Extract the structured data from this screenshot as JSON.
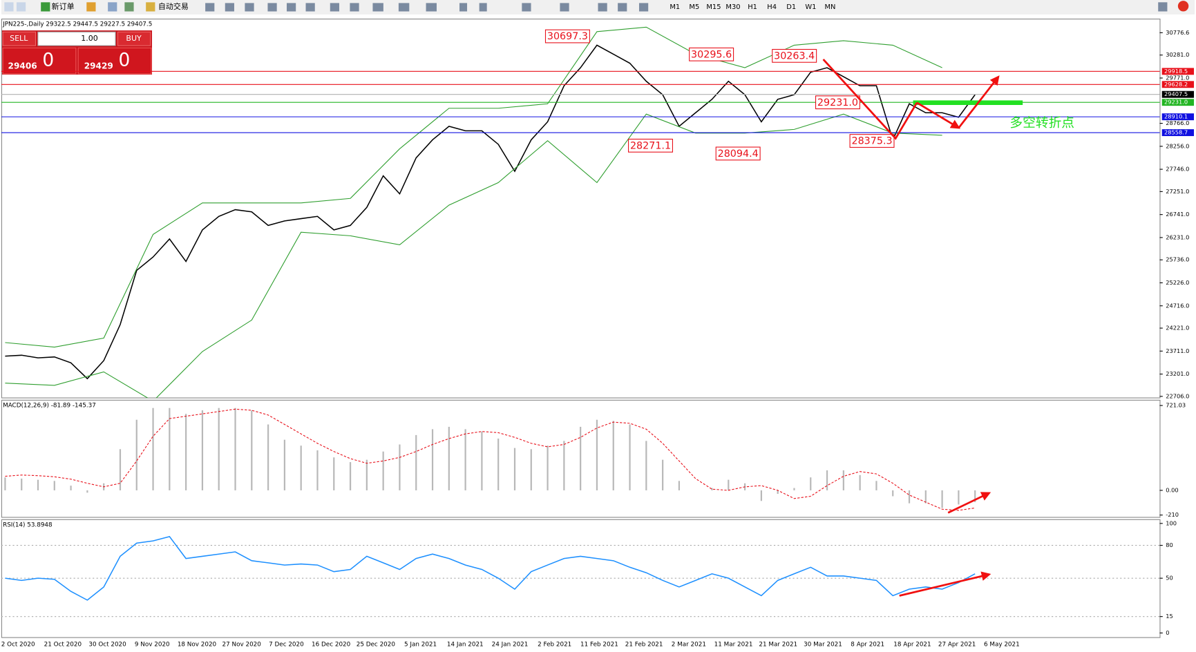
{
  "toolbar": {
    "new_order": "新订单",
    "auto_trading": "自动交易",
    "timeframes": [
      "M1",
      "M5",
      "M15",
      "M30",
      "H1",
      "H4",
      "D1",
      "W1",
      "MN"
    ]
  },
  "order_panel": {
    "sell": "SELL",
    "lots": "1.00",
    "buy": "BUY",
    "bid_main": "29406",
    "bid_big": "0",
    "ask_main": "29429",
    "ask_big": "0"
  },
  "chart_data": [
    {
      "type": "line",
      "title": "JPN225-,Daily  29322.5 29447.5 29227.5 29407.5",
      "ylim": [
        22706.0,
        30776.6
      ],
      "yticks": [
        {
          "value": 30776.6,
          "label": "30776.6"
        },
        {
          "value": 30281.0,
          "label": "30281.0"
        },
        {
          "value": 29771.0,
          "label": "29771.0"
        },
        {
          "value": 28766.0,
          "label": "28766.0"
        },
        {
          "value": 28256.0,
          "label": "28256.0"
        },
        {
          "value": 27746.0,
          "label": "27746.0"
        },
        {
          "value": 27251.0,
          "label": "27251.0"
        },
        {
          "value": 26741.0,
          "label": "26741.0"
        },
        {
          "value": 26231.0,
          "label": "26231.0"
        },
        {
          "value": 25736.0,
          "label": "25736.0"
        },
        {
          "value": 25226.0,
          "label": "25226.0"
        },
        {
          "value": 24716.0,
          "label": "24716.0"
        },
        {
          "value": 24221.0,
          "label": "24221.0"
        },
        {
          "value": 23711.0,
          "label": "23711.0"
        },
        {
          "value": 23201.0,
          "label": "23201.0"
        },
        {
          "value": 22706.0,
          "label": "22706.0"
        }
      ],
      "grid": false,
      "date_labels": [
        "2 Oct 2020",
        "21 Oct 2020",
        "30 Oct 2020",
        "9 Nov 2020",
        "18 Nov 2020",
        "27 Nov 2020",
        "7 Dec 2020",
        "16 Dec 2020",
        "25 Dec 2020",
        "5 Jan 2021",
        "14 Jan 2021",
        "24 Jan 2021",
        "2 Feb 2021",
        "11 Feb 2021",
        "21 Feb 2021",
        "2 Mar 2021",
        "11 Mar 2021",
        "21 Mar 2021",
        "30 Mar 2021",
        "8 Apr 2021",
        "18 Apr 2021",
        "27 Apr 2021",
        "6 May 2021"
      ],
      "series": [
        {
          "color": "#000000",
          "values": [
            23600,
            23620,
            23560,
            23580,
            23450,
            23100,
            23500,
            24300,
            25500,
            25800,
            26200,
            25700,
            26400,
            26700,
            26850,
            26800,
            26500,
            26600,
            26650,
            26700,
            26400,
            26500,
            26900,
            27600,
            27200,
            28000,
            28400,
            28700,
            28600,
            28600,
            28300,
            27700,
            28400,
            28800,
            29600,
            30000,
            30500,
            30300,
            30100,
            29700,
            29400,
            28700,
            29000,
            29300,
            29700,
            29400,
            28800,
            29300,
            29400,
            29900,
            30000,
            29800,
            29600,
            29600,
            28400,
            29200,
            29000,
            29000,
            28900,
            29400
          ]
        },
        {
          "color": "#2e9e2e",
          "values": [
            23900,
            23800,
            24000,
            26300,
            27000,
            27000,
            27000,
            27100,
            28200,
            29100,
            29100,
            29200,
            30800,
            30900,
            30300,
            30000,
            30500,
            30600,
            30500,
            30000
          ]
        },
        {
          "color": "#2e9e2e",
          "values": [
            23000,
            22950,
            23250,
            22600,
            23700,
            24400,
            26350,
            26270,
            26070,
            26950,
            27450,
            28380,
            27450,
            28970,
            28550,
            28550,
            28630,
            28970,
            28550,
            28500
          ]
        }
      ],
      "levels": [
        {
          "value": 29918.5,
          "label": "29918.5",
          "color": "#e8101a"
        },
        {
          "value": 29628.2,
          "label": "29628.2",
          "color": "#e8101a"
        },
        {
          "value": 29407.5,
          "label": "29407.5",
          "color": "#000000"
        },
        {
          "value": 29231.0,
          "label": "29231.0",
          "color": "#22b522"
        },
        {
          "value": 28910.1,
          "label": "28910.1",
          "color": "#1010e0"
        },
        {
          "value": 28558.7,
          "label": "28558.7",
          "color": "#1010e0"
        }
      ],
      "annotations": [
        {
          "value": 30697.3,
          "label": "30697.3"
        },
        {
          "value": 30295.6,
          "label": "30295.6"
        },
        {
          "value": 30263.4,
          "label": "30263.4"
        },
        {
          "value": 29231.0,
          "label": "29231.0"
        },
        {
          "value": 28271.1,
          "label": "28271.1"
        },
        {
          "value": 28094.4,
          "label": "28094.4"
        },
        {
          "value": 28375.3,
          "label": "28375.3"
        }
      ],
      "note": "多空转折点"
    },
    {
      "type": "macd",
      "title": "MACD(12,26,9) -81.89 -145.37",
      "ylim": [
        -210,
        721.03
      ],
      "yticks": [
        {
          "value": 721.03,
          "label": "721.03"
        },
        {
          "value": 0,
          "label": "0.00"
        },
        -210
      ],
      "grid": false,
      "series": [
        {
          "color": "#b8b8b8",
          "values": [
            110,
            100,
            90,
            80,
            40,
            -20,
            60,
            350,
            600,
            700,
            700,
            650,
            680,
            700,
            700,
            680,
            560,
            430,
            380,
            340,
            280,
            240,
            260,
            330,
            390,
            470,
            520,
            540,
            520,
            500,
            440,
            360,
            350,
            380,
            420,
            540,
            600,
            590,
            560,
            420,
            260,
            80,
            0,
            20,
            90,
            60,
            -90,
            -30,
            20,
            110,
            170,
            170,
            130,
            80,
            -50,
            -110,
            -110,
            -150,
            -120,
            -100
          ]
        },
        {
          "color": "#e8101a",
          "values": [
            120,
            130,
            125,
            115,
            95,
            60,
            30,
            60,
            250,
            460,
            610,
            630,
            650,
            670,
            690,
            680,
            640,
            560,
            480,
            400,
            330,
            270,
            230,
            250,
            280,
            330,
            390,
            440,
            480,
            500,
            490,
            450,
            400,
            370,
            390,
            450,
            530,
            580,
            570,
            520,
            400,
            250,
            100,
            10,
            0,
            30,
            40,
            0,
            -70,
            -50,
            40,
            120,
            160,
            140,
            60,
            -40,
            -100,
            -160,
            -170,
            -150
          ]
        }
      ]
    },
    {
      "type": "line",
      "title": "RSI(14) 53.8948",
      "ylim": [
        0,
        100
      ],
      "yticks": [
        100,
        80,
        50,
        15,
        0
      ],
      "grid": true,
      "series": [
        {
          "color": "#1e90ff",
          "values": [
            50,
            48,
            50,
            49,
            38,
            30,
            42,
            70,
            82,
            84,
            88,
            68,
            70,
            72,
            74,
            66,
            64,
            62,
            63,
            62,
            56,
            58,
            70,
            64,
            58,
            68,
            72,
            68,
            62,
            58,
            50,
            40,
            56,
            62,
            68,
            70,
            68,
            66,
            60,
            55,
            48,
            42,
            48,
            54,
            50,
            42,
            34,
            48,
            54,
            60,
            52,
            52,
            50,
            48,
            34,
            40,
            42,
            40,
            46,
            54
          ]
        }
      ]
    }
  ]
}
